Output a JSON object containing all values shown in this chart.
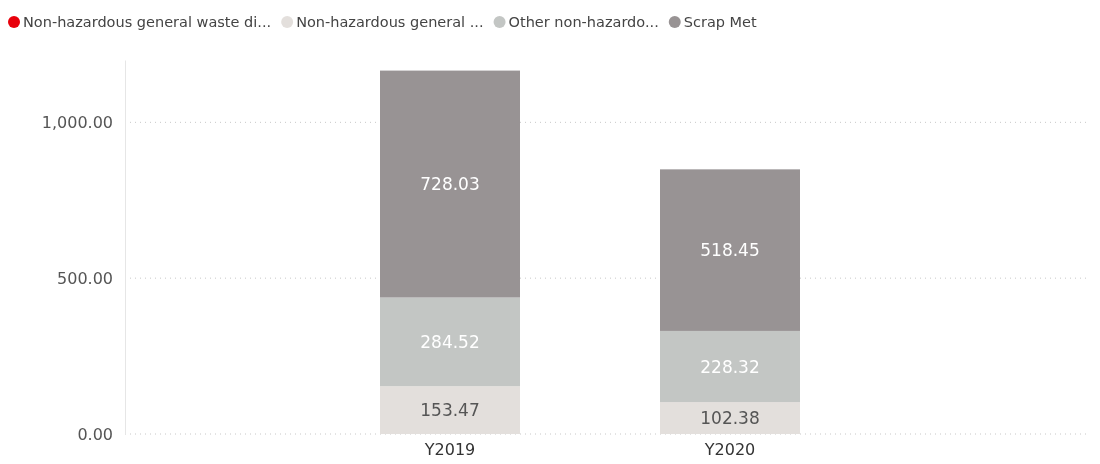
{
  "chart_data": {
    "type": "bar",
    "stacked": true,
    "categories": [
      "Y2019",
      "Y2020"
    ],
    "series": [
      {
        "name": "Non-hazardous general waste di...",
        "color": "#e8000b",
        "values": [
          null,
          null
        ]
      },
      {
        "name": "Non-hazardous general ...",
        "color": "#e3dfdc",
        "values": [
          153.47,
          102.38
        ]
      },
      {
        "name": "Other non-hazardo...",
        "color": "#c3c6c4",
        "values": [
          284.52,
          228.32
        ]
      },
      {
        "name": "Scrap Met",
        "color": "#989394",
        "values": [
          728.03,
          518.45
        ]
      }
    ],
    "ylim": [
      0,
      1200
    ],
    "yticks": [
      {
        "value": 0,
        "label": "0.00"
      },
      {
        "value": 500,
        "label": "500.00"
      },
      {
        "value": 1000,
        "label": "1,000.00"
      }
    ],
    "grid": "y",
    "legend": "top left",
    "data_labels": true
  }
}
